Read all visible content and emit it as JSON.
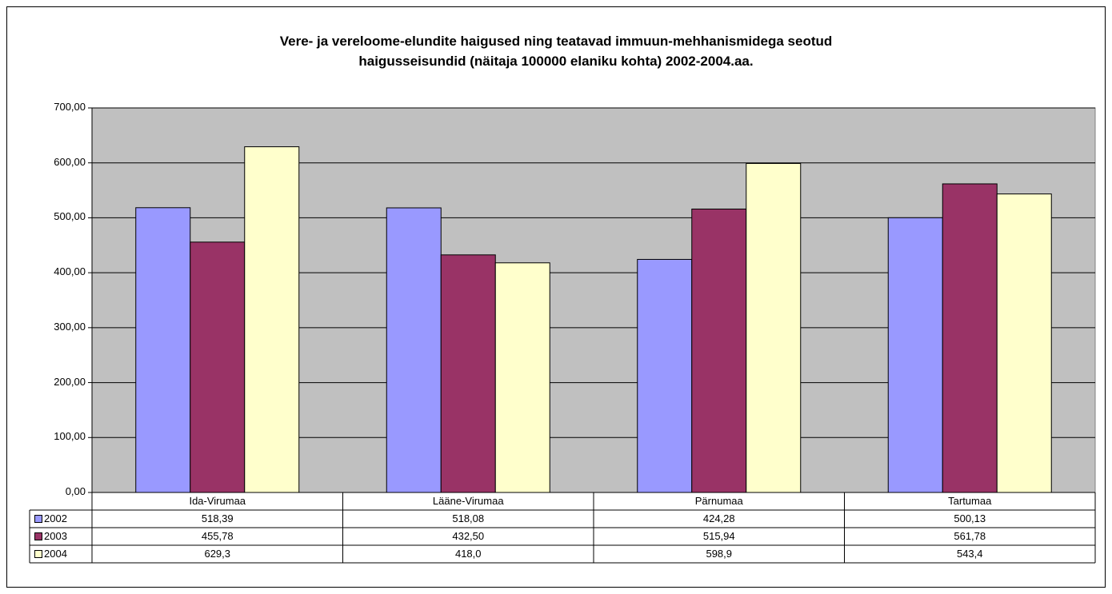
{
  "chart_data": {
    "type": "bar",
    "title_line1": "Vere- ja vereloome-elundite haigused ning teatavad immuun-mehhanismidega seotud",
    "title_line2": "haigusseisundid (näitaja 100000 elaniku kohta) 2002-2004.aa.",
    "xlabel": "",
    "ylabel": "",
    "ylim": [
      0,
      700
    ],
    "yticks": [
      "0,00",
      "100,00",
      "200,00",
      "300,00",
      "400,00",
      "500,00",
      "600,00",
      "700,00"
    ],
    "categories": [
      "Ida-Virumaa",
      "Lääne-Virumaa",
      "Pärnumaa",
      "Tartumaa"
    ],
    "grid": true,
    "legend_placement": "data-table",
    "plot_background": "#c0c0c0",
    "series": [
      {
        "name": "2002",
        "color": "#9999ff",
        "values": [
          518.39,
          518.08,
          424.28,
          500.13
        ],
        "labels": [
          "518,39",
          "518,08",
          "424,28",
          "500,13"
        ]
      },
      {
        "name": "2003",
        "color": "#993366",
        "values": [
          455.78,
          432.5,
          515.94,
          561.78
        ],
        "labels": [
          "455,78",
          "432,50",
          "515,94",
          "561,78"
        ]
      },
      {
        "name": "2004",
        "color": "#ffffcc",
        "values": [
          629.3,
          418.0,
          598.9,
          543.4
        ],
        "labels": [
          "629,3",
          "418,0",
          "598,9",
          "543,4"
        ]
      }
    ]
  }
}
